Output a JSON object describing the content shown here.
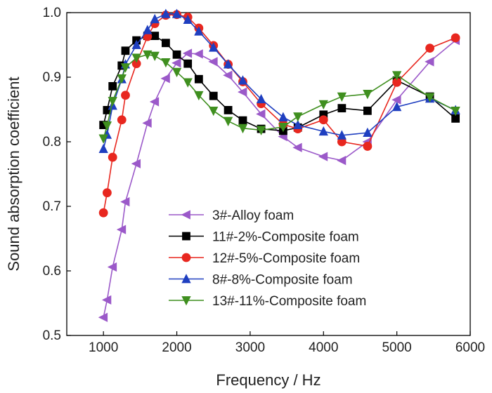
{
  "chart_data": {
    "type": "line",
    "title": "",
    "xlabel": "Frequency / Hz",
    "ylabel": "Sound absorption coefficient",
    "xlim": [
      500,
      6000
    ],
    "ylim": [
      0.5,
      1.0
    ],
    "xticks": [
      "1000",
      "2000",
      "3000",
      "4000",
      "5000",
      "6000"
    ],
    "yticks": [
      "0.5",
      "0.6",
      "0.7",
      "0.8",
      "0.9",
      "1.0"
    ],
    "grid": false,
    "legend_position": "bottom-center",
    "series": [
      {
        "name": "3#-Alloy foam",
        "color": "#9b59c9",
        "marker": "triangle-left",
        "x": [
          1000,
          1050,
          1125,
          1250,
          1300,
          1450,
          1600,
          1700,
          1850,
          2000,
          2150,
          2300,
          2500,
          2700,
          2900,
          3150,
          3450,
          3650,
          4000,
          4250,
          4600,
          5000,
          5450,
          5800
        ],
        "y": [
          0.528,
          0.555,
          0.606,
          0.664,
          0.707,
          0.766,
          0.829,
          0.862,
          0.898,
          0.922,
          0.937,
          0.936,
          0.924,
          0.903,
          0.877,
          0.843,
          0.808,
          0.791,
          0.777,
          0.771,
          0.8,
          0.865,
          0.924,
          0.957
        ]
      },
      {
        "name": "11#-2%-Composite foam",
        "color": "#000000",
        "marker": "square",
        "x": [
          1000,
          1050,
          1125,
          1250,
          1300,
          1450,
          1600,
          1700,
          1850,
          2000,
          2150,
          2300,
          2500,
          2700,
          2900,
          3150,
          3450,
          3650,
          4000,
          4250,
          4600,
          5000,
          5450,
          5800
        ],
        "y": [
          0.826,
          0.849,
          0.886,
          0.918,
          0.941,
          0.957,
          0.964,
          0.964,
          0.953,
          0.935,
          0.921,
          0.897,
          0.871,
          0.849,
          0.833,
          0.82,
          0.817,
          0.822,
          0.842,
          0.852,
          0.848,
          0.895,
          0.87,
          0.836
        ]
      },
      {
        "name": "12#-5%-Composite foam",
        "color": "#e8271f",
        "marker": "circle",
        "x": [
          1000,
          1050,
          1125,
          1250,
          1300,
          1450,
          1600,
          1700,
          1850,
          2000,
          2150,
          2300,
          2500,
          2700,
          2900,
          3150,
          3450,
          3650,
          4000,
          4250,
          4600,
          5000,
          5450,
          5800
        ],
        "y": [
          0.69,
          0.721,
          0.776,
          0.834,
          0.872,
          0.921,
          0.963,
          0.983,
          0.996,
          0.997,
          0.993,
          0.976,
          0.949,
          0.92,
          0.893,
          0.859,
          0.827,
          0.82,
          0.834,
          0.8,
          0.793,
          0.892,
          0.945,
          0.961
        ]
      },
      {
        "name": "8#-8%-Composite foam",
        "color": "#1f3fc0",
        "marker": "triangle-up",
        "x": [
          1000,
          1050,
          1125,
          1250,
          1300,
          1450,
          1600,
          1700,
          1850,
          2000,
          2150,
          2300,
          2500,
          2700,
          2900,
          3150,
          3450,
          3650,
          4000,
          4250,
          4600,
          5000,
          5450,
          5800
        ],
        "y": [
          0.789,
          0.811,
          0.856,
          0.897,
          0.92,
          0.95,
          0.973,
          0.99,
          0.998,
          0.998,
          0.989,
          0.971,
          0.946,
          0.92,
          0.895,
          0.866,
          0.838,
          0.826,
          0.816,
          0.81,
          0.814,
          0.854,
          0.867,
          0.849
        ]
      },
      {
        "name": "13#-11%-Composite foam",
        "color": "#3f8f1f",
        "marker": "triangle-down",
        "x": [
          1000,
          1050,
          1125,
          1250,
          1300,
          1450,
          1600,
          1700,
          1850,
          2000,
          2150,
          2300,
          2500,
          2700,
          2900,
          3150,
          3450,
          3650,
          4000,
          4250,
          4600,
          5000,
          5450,
          5800
        ],
        "y": [
          0.805,
          0.825,
          0.863,
          0.898,
          0.915,
          0.93,
          0.935,
          0.933,
          0.923,
          0.908,
          0.892,
          0.872,
          0.848,
          0.832,
          0.821,
          0.818,
          0.823,
          0.839,
          0.858,
          0.87,
          0.874,
          0.903,
          0.869,
          0.848
        ]
      }
    ]
  }
}
